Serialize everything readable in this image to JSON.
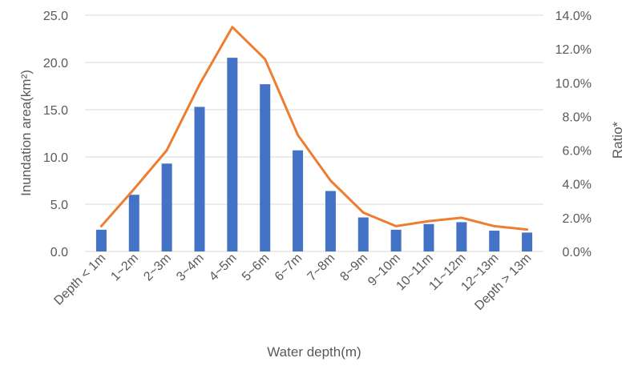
{
  "chart_data": {
    "type": "bar",
    "categories": [
      "Depth < 1m",
      "1~2m",
      "2~3m",
      "3~4m",
      "4~5m",
      "5~6m",
      "6~7m",
      "7~8m",
      "8~9m",
      "9~10m",
      "10~11m",
      "11~12m",
      "12~13m",
      "Depth > 13m"
    ],
    "series": [
      {
        "type": "bar",
        "axis": "left",
        "color": "#4472c4",
        "values": [
          2.3,
          6.0,
          9.3,
          15.3,
          20.5,
          17.7,
          10.7,
          6.4,
          3.6,
          2.3,
          2.9,
          3.1,
          2.2,
          2.0
        ]
      },
      {
        "type": "line",
        "axis": "right",
        "color": "#ed7d31",
        "values": [
          1.5,
          3.7,
          6.0,
          9.9,
          13.3,
          11.4,
          6.9,
          4.2,
          2.3,
          1.5,
          1.8,
          2.0,
          1.5,
          1.3
        ]
      }
    ],
    "xlabel": "Water depth(m)",
    "ylabel": "Inundation area(km²)",
    "y2label": "Ratio*",
    "ylim": [
      0,
      25
    ],
    "y2lim": [
      0,
      14
    ],
    "yticks": [
      "0.0",
      "5.0",
      "10.0",
      "15.0",
      "20.0",
      "25.0"
    ],
    "y2ticks": [
      "0.0%",
      "2.0%",
      "4.0%",
      "6.0%",
      "8.0%",
      "10.0%",
      "12.0%",
      "14.0%"
    ],
    "grid": true,
    "legend": "none"
  }
}
